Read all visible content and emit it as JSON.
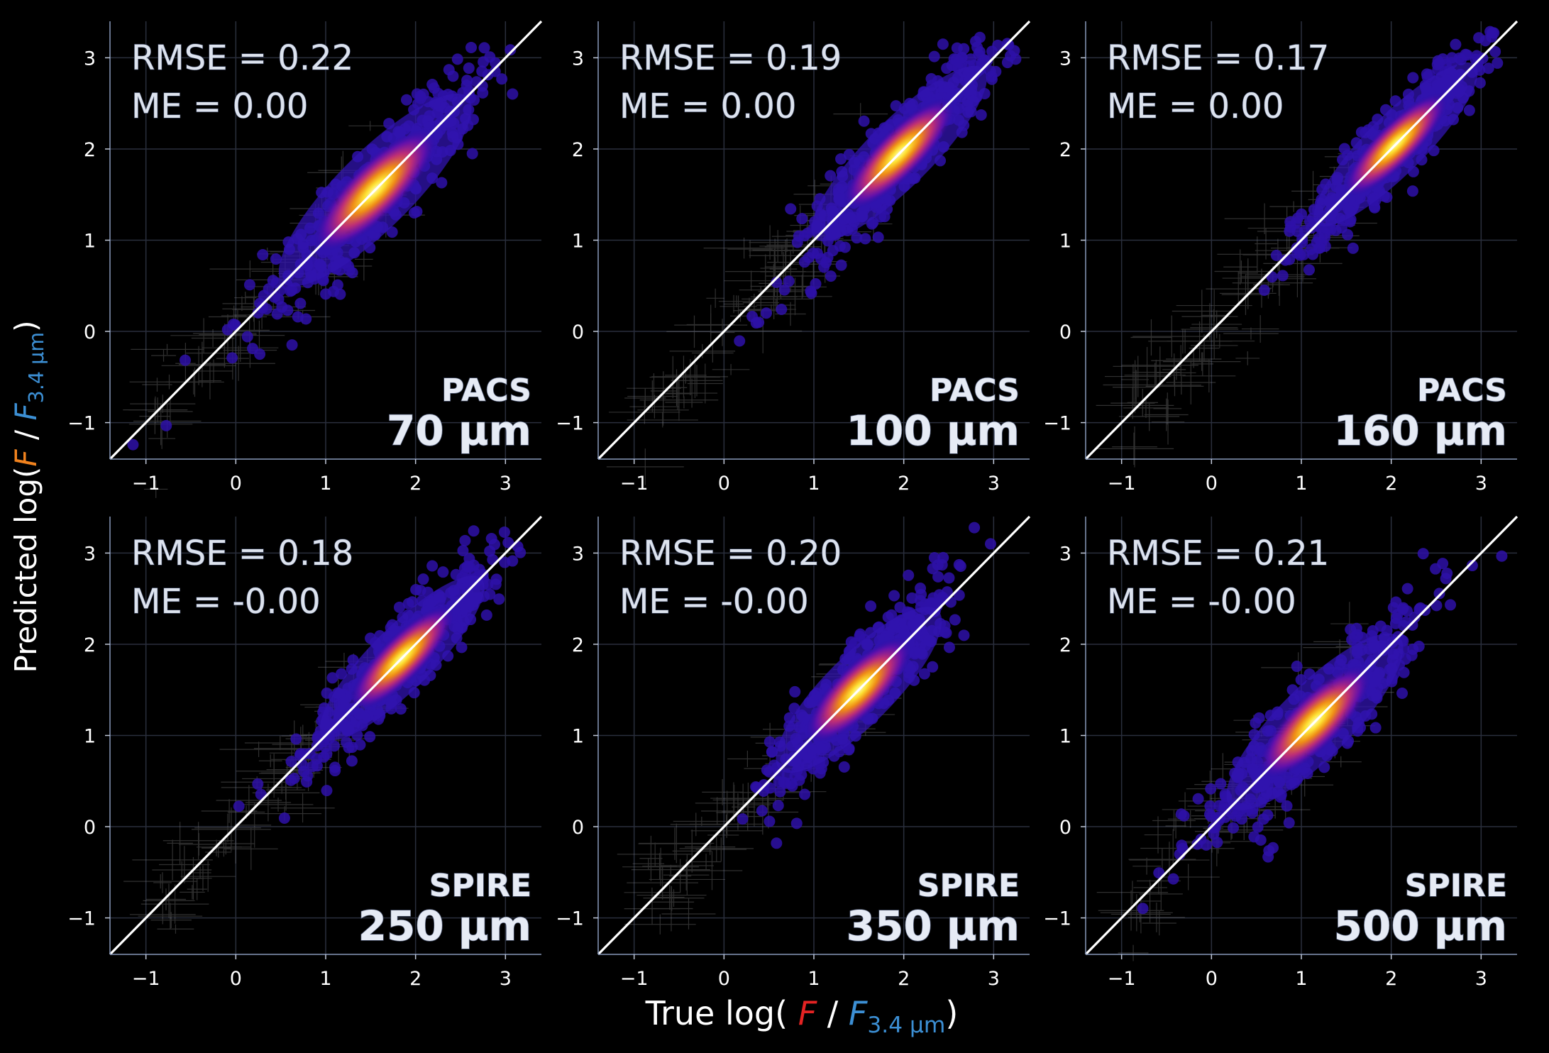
{
  "figure": {
    "ylabel": {
      "prefix": "Predicted log(",
      "f": "F",
      "slash": "/",
      "fref": "F",
      "sub": "3.4 µm",
      "suffix": ")"
    },
    "xlabel": {
      "prefix": "True log(",
      "f": "F",
      "slash": "/",
      "fref": "F",
      "sub": "3.4 µm",
      "suffix": ")"
    },
    "colors": {
      "f_pred": "#f0821e",
      "f_true": "#e42323",
      "fref": "#3c8fd4",
      "metric_text": "#dde3ee",
      "band_text": "#e6ebf5"
    }
  },
  "chart_data": [
    {
      "type": "scatter",
      "instrument": "PACS",
      "band": "70 µm",
      "rmse_label": "RMSE = 0.22",
      "me_label": "ME = 0.00",
      "xlim": [
        -1.4,
        3.4
      ],
      "ylim": [
        -1.4,
        3.4
      ],
      "xticks": [
        -1,
        0,
        1,
        2,
        3
      ],
      "yticks": [
        -1,
        0,
        1,
        2,
        3
      ],
      "peak": [
        1.55,
        1.55
      ],
      "spread": 0.35,
      "scatter": 0.22,
      "identity_line": true
    },
    {
      "type": "scatter",
      "instrument": "PACS",
      "band": "100 µm",
      "rmse_label": "RMSE = 0.19",
      "me_label": "ME = 0.00",
      "xlim": [
        -1.4,
        3.4
      ],
      "ylim": [
        -1.4,
        3.4
      ],
      "xticks": [
        -1,
        0,
        1,
        2,
        3
      ],
      "yticks": [
        -1,
        0,
        1,
        2,
        3
      ],
      "peak": [
        1.95,
        1.95
      ],
      "spread": 0.32,
      "scatter": 0.19,
      "identity_line": true
    },
    {
      "type": "scatter",
      "instrument": "PACS",
      "band": "160 µm",
      "rmse_label": "RMSE = 0.17",
      "me_label": "ME = 0.00",
      "xlim": [
        -1.4,
        3.4
      ],
      "ylim": [
        -1.4,
        3.4
      ],
      "xticks": [
        -1,
        0,
        1,
        2,
        3
      ],
      "yticks": [
        -1,
        0,
        1,
        2,
        3
      ],
      "peak": [
        2.05,
        2.05
      ],
      "spread": 0.3,
      "scatter": 0.17,
      "identity_line": true
    },
    {
      "type": "scatter",
      "instrument": "SPIRE",
      "band": "250 µm",
      "rmse_label": "RMSE = 0.18",
      "me_label": "ME = -0.00",
      "xlim": [
        -1.4,
        3.4
      ],
      "ylim": [
        -1.4,
        3.4
      ],
      "xticks": [
        -1,
        0,
        1,
        2,
        3
      ],
      "yticks": [
        -1,
        0,
        1,
        2,
        3
      ],
      "peak": [
        1.85,
        1.85
      ],
      "spread": 0.3,
      "scatter": 0.18,
      "identity_line": true
    },
    {
      "type": "scatter",
      "instrument": "SPIRE",
      "band": "350 µm",
      "rmse_label": "RMSE = 0.20",
      "me_label": "ME = -0.00",
      "xlim": [
        -1.4,
        3.4
      ],
      "ylim": [
        -1.4,
        3.4
      ],
      "xticks": [
        -1,
        0,
        1,
        2,
        3
      ],
      "yticks": [
        -1,
        0,
        1,
        2,
        3
      ],
      "peak": [
        1.5,
        1.5
      ],
      "spread": 0.3,
      "scatter": 0.2,
      "identity_line": true
    },
    {
      "type": "scatter",
      "instrument": "SPIRE",
      "band": "500 µm",
      "rmse_label": "RMSE = 0.21",
      "me_label": "ME = -0.00",
      "xlim": [
        -1.4,
        3.4
      ],
      "ylim": [
        -1.4,
        3.4
      ],
      "xticks": [
        -1,
        0,
        1,
        2,
        3
      ],
      "yticks": [
        -1,
        0,
        1,
        2,
        3
      ],
      "peak": [
        1.15,
        1.15
      ],
      "spread": 0.32,
      "scatter": 0.21,
      "identity_line": true
    }
  ]
}
